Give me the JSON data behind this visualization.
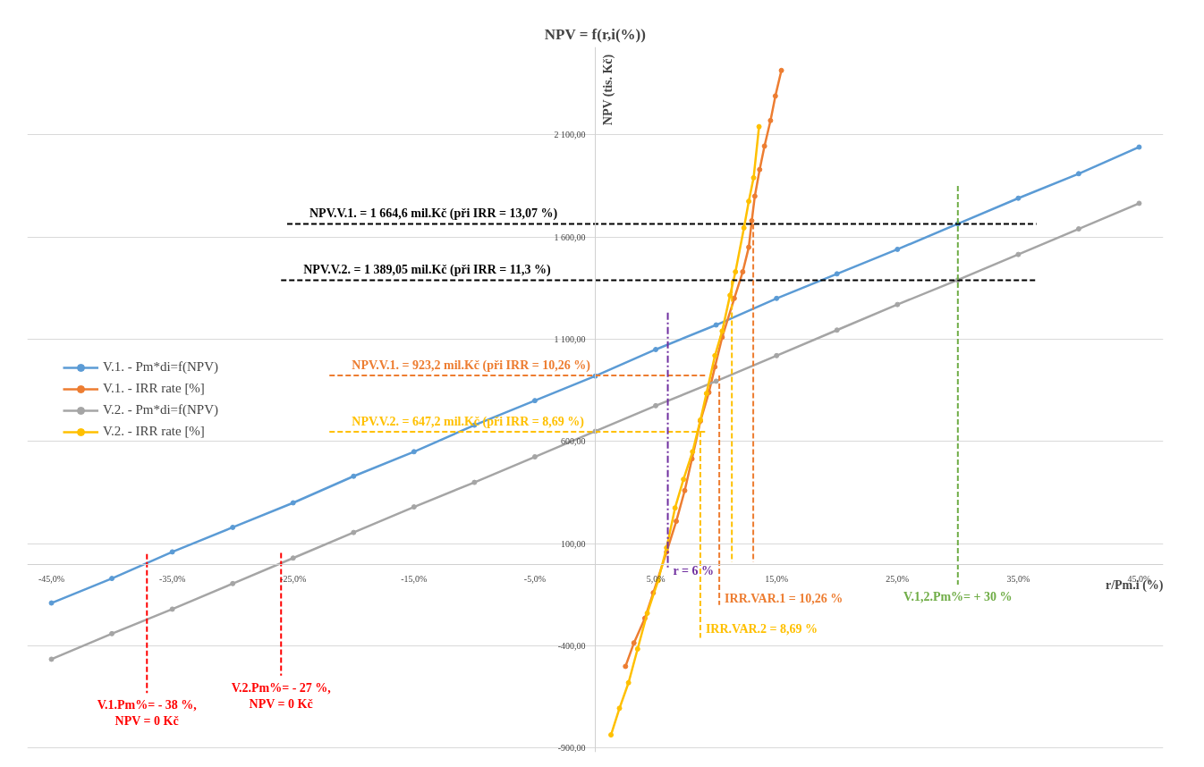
{
  "chart_data": {
    "type": "line",
    "title": "NPV = f(r,i(%))",
    "xlabel": "r/Pm.i (%)",
    "ylabel": "NPV (tis. Kč)",
    "xlim": [
      -47,
      47
    ],
    "ylim": [
      -920,
      2530
    ],
    "xticks": [
      {
        "value": -45,
        "label": "-45,0%"
      },
      {
        "value": -35,
        "label": "-35,0%"
      },
      {
        "value": -25,
        "label": "-25,0%"
      },
      {
        "value": -15,
        "label": "-15,0%"
      },
      {
        "value": -5,
        "label": "-5,0%"
      },
      {
        "value": 5,
        "label": "5,0%"
      },
      {
        "value": 15,
        "label": "15,0%"
      },
      {
        "value": 25,
        "label": "25,0%"
      },
      {
        "value": 35,
        "label": "35,0%"
      },
      {
        "value": 45,
        "label": "45,0%"
      }
    ],
    "yticks": [
      {
        "value": -900,
        "label": "-900,00"
      },
      {
        "value": -400,
        "label": "-400,00"
      },
      {
        "value": 100,
        "label": "100,00"
      },
      {
        "value": 600,
        "label": "600,00"
      },
      {
        "value": 1100,
        "label": "1 100,00"
      },
      {
        "value": 1600,
        "label": "1 600,00"
      },
      {
        "value": 2100,
        "label": "2 100,00"
      }
    ],
    "grid": "y",
    "legend": "left",
    "marker": "circle",
    "line_style": "solid",
    "series": [
      {
        "name": "V.1. - Pm*di=f(NPV)",
        "color": "#5b9bd5",
        "x": [
          -45,
          -40,
          -35,
          -30,
          -25,
          -20,
          -15,
          -10,
          -5,
          0,
          5,
          10,
          15,
          20,
          25,
          30,
          35,
          40,
          45
        ],
        "values": [
          -190,
          -70,
          60,
          180,
          300,
          430,
          550,
          680,
          800,
          920,
          1050,
          1170,
          1300,
          1420,
          1540,
          1665,
          1790,
          1910,
          2040
        ]
      },
      {
        "name": "V.1. - IRR rate [%]",
        "color": "#ed7d31",
        "x": [
          2.5,
          3.2,
          4.1,
          4.8,
          5.9,
          6.7,
          7.4,
          8.0,
          8.7,
          9.4,
          9.9,
          10.5,
          11.5,
          12.2,
          12.7,
          12.95,
          13.2,
          13.6,
          14.0,
          14.5,
          14.9,
          15.4
        ],
        "values": [
          -500,
          -385,
          -265,
          -140,
          60,
          210,
          360,
          515,
          700,
          840,
          965,
          1110,
          1300,
          1430,
          1550,
          1680,
          1800,
          1930,
          2045,
          2170,
          2290,
          2415
        ]
      },
      {
        "name": "V.2. - Pm*di=f(NPV)",
        "color": "#a5a5a5",
        "x": [
          -45,
          -40,
          -35,
          -30,
          -25,
          -20,
          -15,
          -10,
          -5,
          0,
          5,
          10,
          15,
          20,
          25,
          30,
          35,
          40,
          45
        ],
        "values": [
          -465,
          -340,
          -220,
          -95,
          30,
          155,
          280,
          400,
          525,
          650,
          775,
          895,
          1020,
          1145,
          1270,
          1390,
          1515,
          1640,
          1765
        ]
      },
      {
        "name": "V.2. - IRR rate [%]",
        "color": "#ffc000",
        "x": [
          1.3,
          2.0,
          2.75,
          3.5,
          4.3,
          5.2,
          5.9,
          6.6,
          7.3,
          8.05,
          8.7,
          9.2,
          9.9,
          10.5,
          11.15,
          11.6,
          12.3,
          12.7,
          13.1,
          13.55
        ],
        "values": [
          -835,
          -705,
          -580,
          -415,
          -240,
          -80,
          80,
          275,
          415,
          550,
          705,
          835,
          1020,
          1140,
          1315,
          1430,
          1645,
          1775,
          1890,
          2140
        ]
      },
      {
        "color": "#000000",
        "marker": "none",
        "line_style": "dashed",
        "x": [
          -25.5,
          36.5
        ],
        "values": [
          1664.6,
          1664.6
        ]
      },
      {
        "color": "#000000",
        "marker": "none",
        "line_style": "dashed",
        "x": [
          -26,
          36.4
        ],
        "values": [
          1389.05,
          1389.05
        ]
      },
      {
        "color": "#ed7d31",
        "marker": "none",
        "line_style": "dashed",
        "x": [
          -22,
          9.3
        ],
        "values": [
          923.2,
          923.2
        ]
      },
      {
        "color": "#ffc000",
        "marker": "none",
        "line_style": "dashed",
        "x": [
          -22,
          9.3
        ],
        "values": [
          647.2,
          647.2
        ]
      },
      {
        "color": "#ed7d31",
        "marker": "none",
        "line_style": "dashed",
        "x": [
          10.26,
          10.26
        ],
        "values": [
          923.2,
          -200
        ]
      },
      {
        "color": "#ed7d31",
        "marker": "none",
        "line_style": "dashed",
        "x": [
          13.07,
          13.07
        ],
        "values": [
          1664.6,
          10
        ]
      },
      {
        "color": "#ffc000",
        "marker": "none",
        "line_style": "dashed",
        "x": [
          8.69,
          8.69
        ],
        "values": [
          647.2,
          -360
        ]
      },
      {
        "color": "#ffc000",
        "marker": "none",
        "line_style": "dashed",
        "x": [
          11.3,
          11.3
        ],
        "values": [
          1389.05,
          10
        ]
      },
      {
        "color": "#7030a0",
        "marker": "none",
        "line_style": "dashdot",
        "x": [
          6,
          6
        ],
        "values": [
          1230,
          -20
        ]
      },
      {
        "color": "#70ad47",
        "marker": "none",
        "line_style": "dashed",
        "x": [
          30,
          30
        ],
        "values": [
          1850,
          -100
        ]
      },
      {
        "color": "#ff0000",
        "marker": "none",
        "line_style": "dashed",
        "x": [
          -37.1,
          -37.1
        ],
        "values": [
          50,
          -630
        ]
      },
      {
        "color": "#ff0000",
        "marker": "none",
        "line_style": "dashed",
        "x": [
          -26,
          -26
        ],
        "values": [
          55,
          -545
        ]
      }
    ],
    "annotations": [
      {
        "text": "NPV.V.1. = 1 664,6 mil.Kč (při IRR = 13,07 %)",
        "x": -25.5,
        "y": 1664.6
      },
      {
        "text": "NPV.V.2. = 1 389,05 mil.Kč (při IRR = 11,3 %)",
        "x": -26,
        "y": 1389.05
      },
      {
        "text": "NPV.V.1. = 923,2 mil.Kč (při IRR = 10,26 %)",
        "x": -22,
        "y": 923.2
      },
      {
        "text": "NPV.V.2. = 647,2 mil.Kč (při IRR = 8,69 %)",
        "x": -22,
        "y": 647.2
      },
      {
        "text": "r = 6 %",
        "x": 6,
        "y": 0
      },
      {
        "text": "IRR.VAR.1 = 10,26 %",
        "x": 10.26,
        "y": -134
      },
      {
        "text": "IRR.VAR.2 = 8,69 %",
        "x": 8.69,
        "y": -284
      },
      {
        "text": "V.1,2.Pm%= + 30 %",
        "x": 30,
        "y": -100
      },
      {
        "text": "V.1.Pm%= - 38 %,\nNPV = 0 Kč",
        "x": -37.1,
        "y": -630
      },
      {
        "text": "V.2.Pm%= - 27 %,\nNPV = 0 Kč",
        "x": -26,
        "y": -545
      }
    ]
  }
}
